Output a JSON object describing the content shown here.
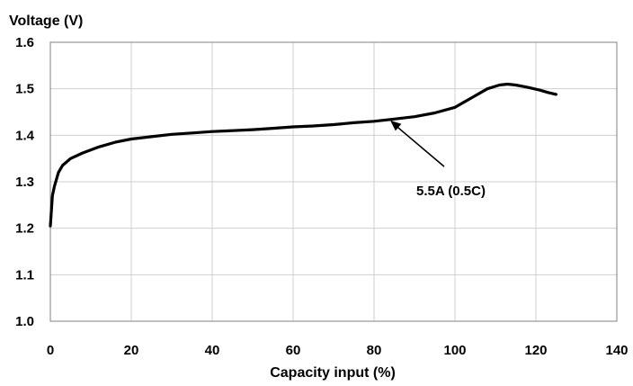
{
  "chart_data": {
    "type": "line",
    "ylabel": "Voltage (V)",
    "xlabel": "Capacity input (%)",
    "xlim": [
      0,
      140
    ],
    "ylim": [
      1.0,
      1.6
    ],
    "xticks": [
      0,
      20,
      40,
      60,
      80,
      100,
      120,
      140
    ],
    "yticks": [
      "1.0",
      "1.1",
      "1.2",
      "1.3",
      "1.4",
      "1.5",
      "1.6"
    ],
    "grid": true,
    "series_color": "#000000",
    "series": [
      {
        "x": [
          0,
          0.5,
          1,
          2,
          3,
          5,
          8,
          12,
          16,
          20,
          25,
          30,
          35,
          40,
          45,
          50,
          55,
          60,
          65,
          70,
          75,
          80,
          85,
          90,
          95,
          100,
          104,
          108,
          111,
          113,
          115,
          118,
          121,
          123,
          125
        ],
        "y": [
          1.205,
          1.27,
          1.29,
          1.32,
          1.335,
          1.35,
          1.362,
          1.375,
          1.385,
          1.392,
          1.397,
          1.402,
          1.405,
          1.408,
          1.41,
          1.412,
          1.415,
          1.418,
          1.42,
          1.423,
          1.427,
          1.43,
          1.435,
          1.44,
          1.448,
          1.46,
          1.48,
          1.5,
          1.508,
          1.51,
          1.508,
          1.503,
          1.497,
          1.492,
          1.488
        ]
      }
    ],
    "annotation": {
      "text": "5.5A (0.5C)",
      "point": [
        84,
        1.432
      ],
      "text_at": [
        100,
        1.29
      ]
    }
  }
}
